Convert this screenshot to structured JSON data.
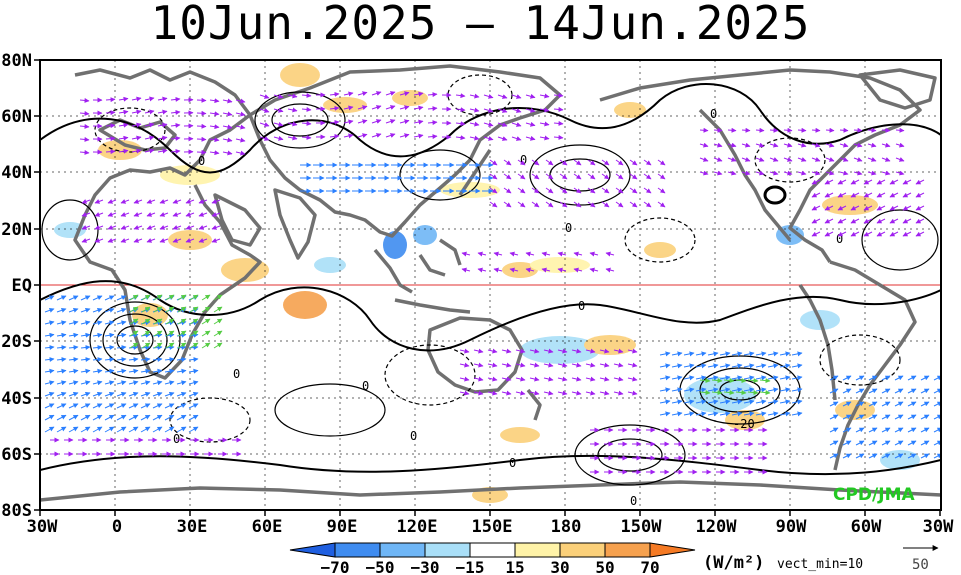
{
  "title": "10Jun.2025 — 14Jun.2025",
  "latitudes": [
    "80N",
    "60N",
    "40N",
    "20N",
    "EQ",
    "20S",
    "40S",
    "60S",
    "80S"
  ],
  "longitudes": [
    "30W",
    "0",
    "30E",
    "60E",
    "90E",
    "120E",
    "150E",
    "180",
    "150W",
    "120W",
    "90W",
    "60W",
    "30W"
  ],
  "colorbar": {
    "labels": [
      "−70",
      "−50",
      "−30",
      "−15",
      "15",
      "30",
      "50",
      "70"
    ],
    "colors": [
      "#1f5fe0",
      "#3f8cf0",
      "#6fb6f6",
      "#a9dff8",
      "#ffffff",
      "#fff3a8",
      "#fbd07a",
      "#f6a14e",
      "#f57a24"
    ],
    "unit": "(W/m²)",
    "vector_note": "vect_min=10"
  },
  "reference_vector": "50",
  "contour_labels": [
    "0",
    "0",
    "0",
    "0",
    "0",
    "0",
    "0",
    "0",
    "0",
    "0",
    "0",
    "0",
    "-20"
  ],
  "credit": "CPD/JMA"
}
